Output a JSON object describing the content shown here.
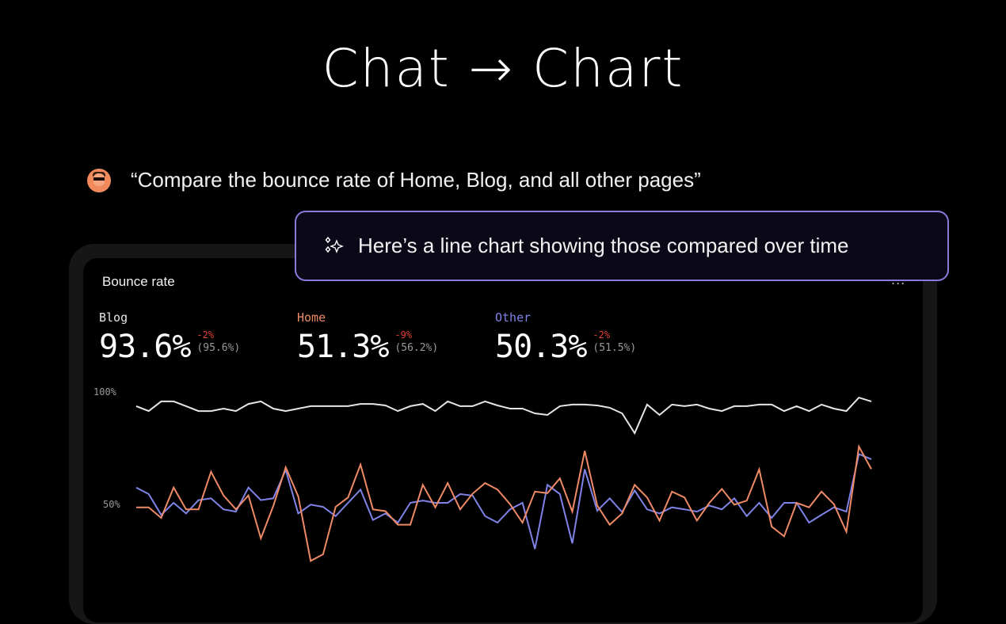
{
  "title": "Chat → Chart",
  "prompt": {
    "avatar_icon": "user-avatar",
    "text": "“Compare the bounce rate of Home, Blog, and all other pages”"
  },
  "response": {
    "icon": "sparkle-icon",
    "text": "Here’s a line chart showing those compared over time"
  },
  "card": {
    "title": "Bounce rate",
    "more_label": "...",
    "metrics": [
      {
        "label": "Blog",
        "value": "93.6%",
        "delta": "-2%",
        "previous": "(95.6%)",
        "color": "#e6e6e6"
      },
      {
        "label": "Home",
        "value": "51.3%",
        "delta": "-9%",
        "previous": "(56.2%)",
        "color": "#ee8a66"
      },
      {
        "label": "Other",
        "value": "50.3%",
        "delta": "-2%",
        "previous": "(51.5%)",
        "color": "#7f83e6"
      }
    ]
  },
  "colors": {
    "accent_border": "#8e78dc",
    "delta_negative": "#e0403a"
  },
  "chart_data": {
    "type": "line",
    "yticks": [
      "100%",
      "50%"
    ],
    "ytick_values": [
      100,
      50
    ],
    "grid": false,
    "series": [
      {
        "name": "Blog",
        "color": "#e6e6e6",
        "values": [
          93.7,
          91.5,
          95.8,
          95.8,
          93.7,
          91.5,
          91.5,
          92.6,
          91.5,
          94.7,
          95.8,
          92.6,
          91.5,
          92.6,
          93.7,
          93.7,
          93.7,
          93.7,
          94.7,
          94.7,
          94.0,
          91.5,
          93.7,
          94.7,
          91.5,
          95.8,
          93.7,
          93.7,
          95.8,
          94.0,
          92.6,
          92.6,
          90.5,
          89.8,
          93.7,
          94.4,
          94.4,
          94.0,
          93.0,
          90.5,
          81.7,
          94.4,
          89.8,
          94.4,
          93.7,
          94.4,
          92.6,
          91.5,
          93.7,
          93.7,
          94.4,
          94.4,
          91.5,
          93.7,
          91.5,
          94.4,
          92.6,
          91.5,
          97.5,
          95.8
        ]
      },
      {
        "name": "Other",
        "color": "#7f83e6",
        "values": [
          57.5,
          54.6,
          45.4,
          50.7,
          46.0,
          51.9,
          52.7,
          47.8,
          46.8,
          57.5,
          51.9,
          52.7,
          65.4,
          46.0,
          49.9,
          48.9,
          44.8,
          50.7,
          56.6,
          43.1,
          46.0,
          41.9,
          50.7,
          51.7,
          50.7,
          50.7,
          54.6,
          53.9,
          44.8,
          41.9,
          47.8,
          50.7,
          30.2,
          58.7,
          54.6,
          32.7,
          65.6,
          47.2,
          52.7,
          46.6,
          56.2,
          47.8,
          46.0,
          48.7,
          47.8,
          46.8,
          49.5,
          47.8,
          52.7,
          44.8,
          50.7,
          44.0,
          50.7,
          50.7,
          41.9,
          45.4,
          48.7,
          46.8,
          72.4,
          70.1
        ]
      },
      {
        "name": "Home",
        "color": "#ee8a66",
        "values": [
          48.7,
          48.7,
          44.0,
          57.5,
          47.8,
          47.8,
          64.5,
          54.0,
          47.8,
          54.0,
          34.9,
          49.3,
          66.5,
          53.6,
          24.9,
          27.8,
          48.9,
          53.1,
          67.7,
          47.8,
          47.0,
          41.0,
          41.0,
          58.7,
          48.7,
          59.5,
          47.8,
          54.8,
          59.5,
          56.6,
          50.1,
          41.9,
          55.7,
          55.0,
          61.6,
          46.8,
          73.8,
          49.5,
          41.0,
          46.0,
          58.7,
          53.1,
          42.8,
          55.7,
          53.1,
          42.8,
          50.7,
          56.9,
          49.9,
          51.7,
          65.6,
          40.1,
          35.8,
          50.7,
          48.7,
          55.7,
          50.1,
          37.8,
          75.7,
          65.7
        ]
      }
    ]
  }
}
